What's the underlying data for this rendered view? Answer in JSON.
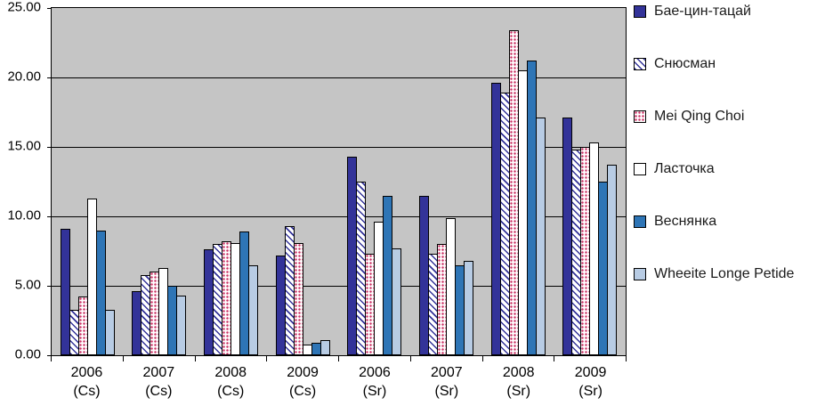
{
  "chart_data": {
    "type": "bar",
    "title": "",
    "xlabel": "",
    "ylabel": "",
    "grid": true,
    "legend_position": "right",
    "plot_background": "#c5c5c5",
    "page_background": "#ffffff",
    "ylim": [
      0,
      25
    ],
    "yticks": [
      {
        "value": 0,
        "label": "0.00"
      },
      {
        "value": 5,
        "label": "5.00"
      },
      {
        "value": 10,
        "label": "10.00"
      },
      {
        "value": 15,
        "label": "15.00"
      },
      {
        "value": 20,
        "label": "20.00"
      },
      {
        "value": 25,
        "label": "25.00"
      }
    ],
    "categories": [
      "2006 (Cs)",
      "2007 (Cs)",
      "2008 (Cs)",
      "2009 (Cs)",
      "2006 (Sr)",
      "2007 (Sr)",
      "2008 (Sr)",
      "2009 (Sr)"
    ],
    "series": [
      {
        "name": "Бае-цин-тацай",
        "pattern": "solid",
        "color": "#333399",
        "values": [
          9.1,
          4.6,
          7.6,
          7.2,
          14.3,
          11.5,
          19.6,
          17.1
        ]
      },
      {
        "name": "Снюсман",
        "pattern": "diagonal",
        "color": "#333399",
        "values": [
          3.3,
          5.8,
          8.0,
          9.3,
          12.5,
          7.3,
          18.9,
          14.8
        ]
      },
      {
        "name": "Mei Qing Choi",
        "pattern": "dots",
        "color": "#cc3366",
        "values": [
          4.2,
          6.0,
          8.2,
          8.1,
          7.3,
          8.0,
          23.4,
          15.0
        ]
      },
      {
        "name": "Ласточка",
        "pattern": "solid",
        "color": "#ffffff",
        "values": [
          11.3,
          6.3,
          8.1,
          0.8,
          9.6,
          9.9,
          20.5,
          15.3
        ]
      },
      {
        "name": "Веснянка",
        "pattern": "solid",
        "color": "#2e75b6",
        "values": [
          9.0,
          5.0,
          8.9,
          0.9,
          11.5,
          6.5,
          21.2,
          12.5
        ]
      },
      {
        "name": "Wheeite Longe Petide",
        "pattern": "solid",
        "color": "#b8cce4",
        "values": [
          3.3,
          4.3,
          6.5,
          1.1,
          7.7,
          6.8,
          17.1,
          13.7
        ]
      }
    ]
  }
}
